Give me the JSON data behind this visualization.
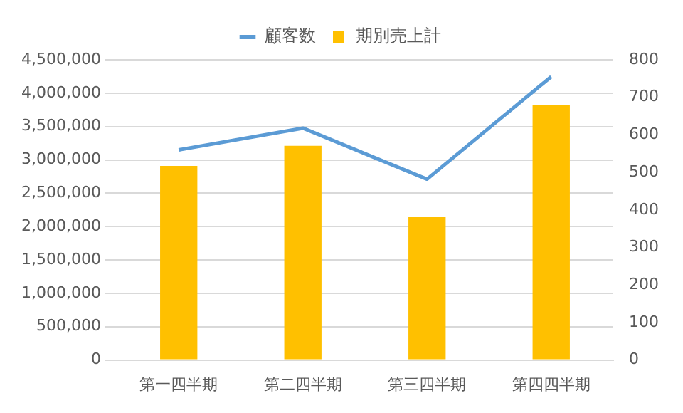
{
  "chart_data": {
    "type": "bar",
    "categories": [
      "第一四半期",
      "第二四半期",
      "第三四半期",
      "第四四半期"
    ],
    "series": [
      {
        "name": "期別売上計",
        "color": "#ffc000",
        "values": [
          2910000,
          3210000,
          2140000,
          3820000
        ]
      },
      {
        "name": "顧客数",
        "type": "line",
        "axis": "y2",
        "color": "#5b9bd5",
        "values": [
          560,
          618,
          482,
          755
        ]
      }
    ],
    "ylim": [
      0,
      4500000
    ],
    "yticks": [
      0,
      {
        "value": 500000,
        "label": "500,000"
      },
      {
        "value": 1000000,
        "label": "1,000,000"
      },
      {
        "value": 1500000,
        "label": "1,500,000"
      },
      {
        "value": 2000000,
        "label": "2,000,000"
      },
      {
        "value": 2500000,
        "label": "2,500,000"
      },
      {
        "value": 3000000,
        "label": "3,000,000"
      },
      {
        "value": 3500000,
        "label": "3,500,000"
      },
      {
        "value": 4000000,
        "label": "4,000,000"
      },
      {
        "value": 4500000,
        "label": "4,500,000"
      }
    ],
    "y2lim": [
      0,
      800
    ],
    "y2ticks": [
      0,
      100,
      200,
      300,
      400,
      500,
      600,
      700,
      800
    ],
    "grid": "y",
    "legend": "top",
    "marker": "none"
  }
}
